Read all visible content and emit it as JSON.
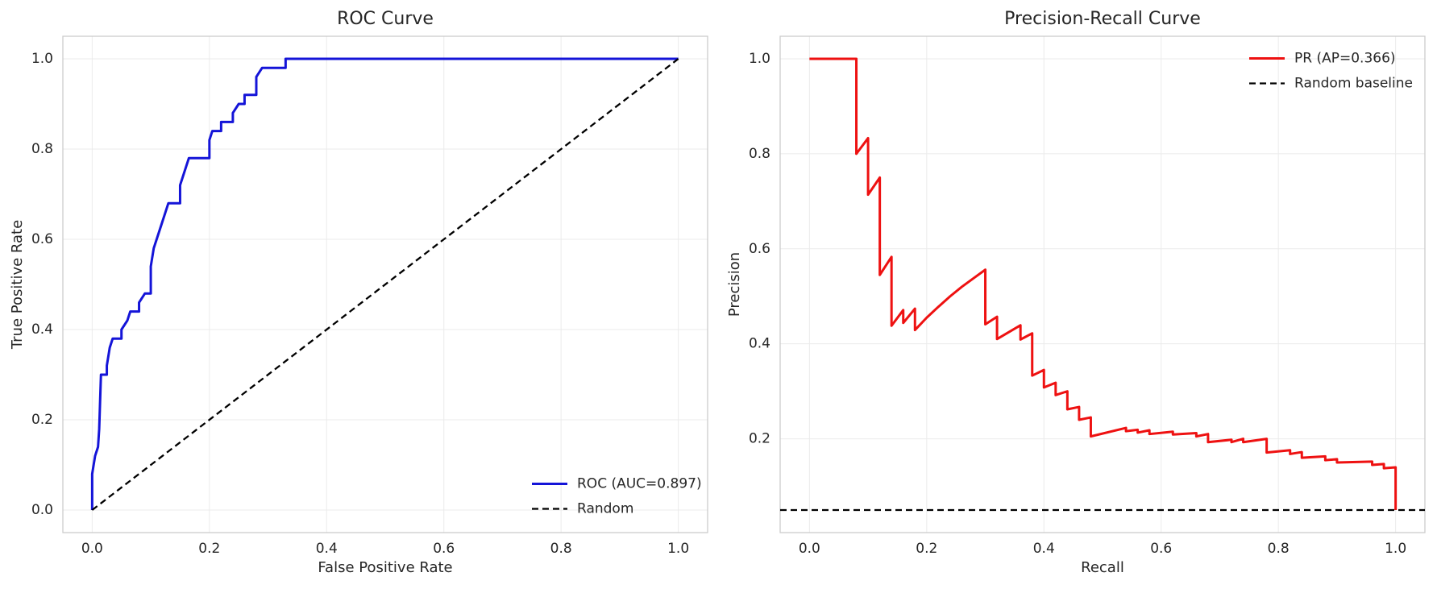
{
  "chart_data": [
    {
      "type": "line",
      "title": "ROC Curve",
      "xlabel": "False Positive Rate",
      "ylabel": "True Positive Rate",
      "xlim": [
        -0.05,
        1.05
      ],
      "ylim": [
        -0.05,
        1.05
      ],
      "xticks": [
        {
          "value": 0,
          "label": "0.0"
        },
        0.2,
        0.4,
        0.6,
        0.8,
        {
          "value": 1,
          "label": "1.0"
        }
      ],
      "yticks": [
        {
          "value": 0,
          "label": "0.0"
        },
        0.2,
        0.4,
        0.6,
        0.8,
        {
          "value": 1,
          "label": "1.0"
        }
      ],
      "grid": true,
      "legend": "lower right",
      "series": [
        {
          "name": "ROC (AUC=0.897)",
          "color": "#1414d8",
          "linestyle": "solid",
          "x": [
            0,
            0,
            0.005,
            0.01,
            0.012,
            0.015,
            0.025,
            0.025,
            0.03,
            0.035,
            0.05,
            0.05,
            0.06,
            0.065,
            0.08,
            0.08,
            0.09,
            0.1,
            0.1,
            0.105,
            0.11,
            0.12,
            0.125,
            0.13,
            0.15,
            0.15,
            0.155,
            0.165,
            0.2,
            0.2,
            0.205,
            0.22,
            0.22,
            0.24,
            0.24,
            0.25,
            0.26,
            0.26,
            0.28,
            0.28,
            0.29,
            0.3,
            0.33,
            0.33,
            1.0
          ],
          "values": [
            0,
            0.08,
            0.12,
            0.14,
            0.18,
            0.3,
            0.3,
            0.32,
            0.36,
            0.38,
            0.38,
            0.4,
            0.42,
            0.44,
            0.44,
            0.46,
            0.48,
            0.48,
            0.54,
            0.58,
            0.6,
            0.64,
            0.66,
            0.68,
            0.68,
            0.72,
            0.74,
            0.78,
            0.78,
            0.82,
            0.84,
            0.84,
            0.86,
            0.86,
            0.88,
            0.9,
            0.9,
            0.92,
            0.92,
            0.96,
            0.98,
            0.98,
            0.98,
            1.0,
            1.0
          ]
        },
        {
          "name": "Random",
          "color": "#000000",
          "linestyle": "dashed",
          "x": [
            0,
            1
          ],
          "values": [
            0,
            1
          ]
        }
      ]
    },
    {
      "type": "line",
      "title": "Precision-Recall Curve",
      "xlabel": "Recall",
      "ylabel": "Precision",
      "xlim": [
        -0.05,
        1.05
      ],
      "ylim": [
        0.0025,
        1.0475
      ],
      "xticks": [
        {
          "value": 0,
          "label": "0.0"
        },
        0.2,
        0.4,
        0.6,
        0.8,
        {
          "value": 1,
          "label": "1.0"
        }
      ],
      "yticks": [
        0.2,
        0.4,
        0.6,
        0.8,
        {
          "value": 1,
          "label": "1.0"
        }
      ],
      "grid": true,
      "legend": "upper right",
      "series": [
        {
          "name": "PR (AP=0.366)",
          "color": "#ee1111",
          "linestyle": "solid",
          "x": [
            0,
            0.08,
            0.08,
            0.1,
            0.1,
            0.12,
            0.12,
            0.14,
            0.14,
            0.16,
            0.16,
            0.18,
            0.18,
            0.2,
            0.22,
            0.24,
            0.26,
            0.28,
            0.3,
            0.3,
            0.32,
            0.32,
            0.36,
            0.36,
            0.38,
            0.38,
            0.4,
            0.4,
            0.42,
            0.42,
            0.44,
            0.44,
            0.46,
            0.46,
            0.48,
            0.48,
            0.54,
            0.54,
            0.56,
            0.56,
            0.58,
            0.58,
            0.62,
            0.62,
            0.66,
            0.66,
            0.68,
            0.68,
            0.72,
            0.72,
            0.74,
            0.74,
            0.78,
            0.78,
            0.82,
            0.82,
            0.84,
            0.84,
            0.88,
            0.88,
            0.9,
            0.9,
            0.96,
            0.96,
            0.98,
            0.98,
            1.0,
            1.0
          ],
          "values": [
            1,
            1,
            0.8,
            0.833,
            0.714,
            0.75,
            0.545,
            0.583,
            0.438,
            0.471,
            0.444,
            0.474,
            0.429,
            0.455,
            0.478,
            0.5,
            0.52,
            0.538,
            0.556,
            0.441,
            0.457,
            0.41,
            0.439,
            0.409,
            0.422,
            0.333,
            0.345,
            0.308,
            0.318,
            0.292,
            0.3,
            0.262,
            0.267,
            0.24,
            0.245,
            0.205,
            0.223,
            0.216,
            0.219,
            0.213,
            0.218,
            0.21,
            0.215,
            0.209,
            0.212,
            0.205,
            0.21,
            0.193,
            0.198,
            0.193,
            0.2,
            0.193,
            0.2,
            0.171,
            0.176,
            0.168,
            0.172,
            0.16,
            0.163,
            0.155,
            0.157,
            0.15,
            0.152,
            0.145,
            0.147,
            0.138,
            0.14,
            0.05
          ]
        },
        {
          "name": "Random baseline",
          "color": "#000000",
          "linestyle": "dashed",
          "hline": 0.05
        }
      ]
    }
  ]
}
